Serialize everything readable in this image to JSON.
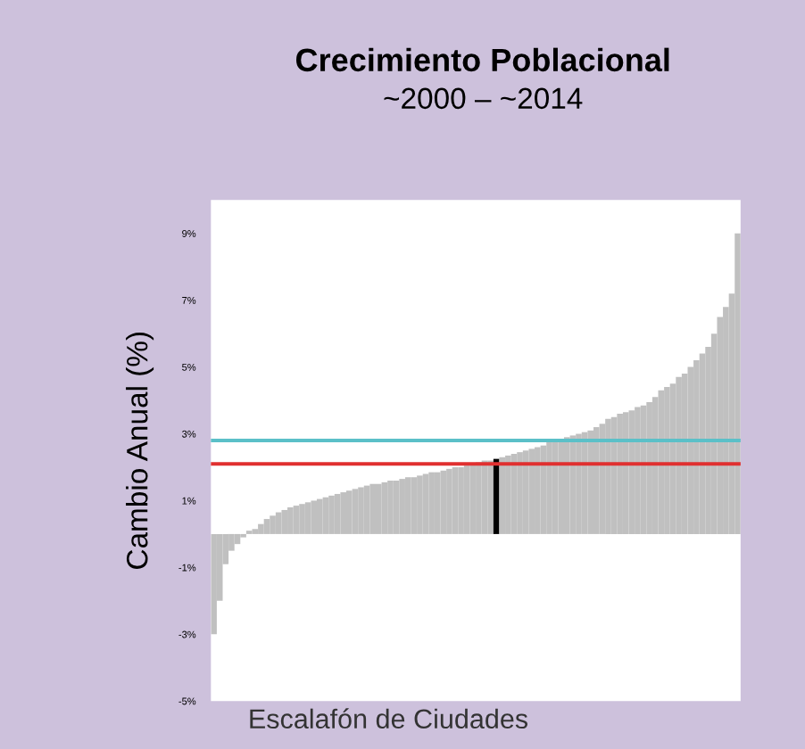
{
  "chart_data": {
    "type": "bar",
    "title": "Crecimiento Poblacional",
    "subtitle": "~2000 – ~2014",
    "xlabel": "Escalafón de Ciudades",
    "ylabel": "Cambio Anual (%)",
    "categories": [
      null,
      null,
      null,
      null,
      null,
      null,
      null,
      null,
      null,
      null,
      null,
      null,
      null,
      null,
      null,
      null,
      null,
      null,
      null,
      null,
      null,
      null,
      null,
      null,
      null,
      null,
      null,
      null,
      null,
      null,
      null,
      null,
      null,
      null,
      null,
      null,
      null,
      null,
      null,
      null,
      null,
      null,
      null,
      null,
      null,
      null,
      null,
      null,
      null,
      null,
      null,
      null,
      null,
      null,
      null,
      null,
      null,
      null,
      null,
      null,
      null,
      null,
      null,
      null,
      null,
      null,
      null,
      null,
      null,
      null,
      null,
      null,
      null,
      null,
      null,
      null,
      null,
      null,
      null,
      null,
      null,
      null,
      null,
      null,
      null,
      null,
      null,
      null,
      null,
      null
    ],
    "values": [
      -3.0,
      -2.0,
      -0.9,
      -0.5,
      -0.3,
      -0.1,
      0.1,
      0.15,
      0.3,
      0.45,
      0.55,
      0.65,
      0.72,
      0.8,
      0.85,
      0.9,
      0.95,
      1.0,
      1.05,
      1.1,
      1.15,
      1.2,
      1.25,
      1.3,
      1.35,
      1.4,
      1.45,
      1.5,
      1.5,
      1.55,
      1.6,
      1.6,
      1.65,
      1.7,
      1.7,
      1.75,
      1.8,
      1.85,
      1.85,
      1.9,
      1.95,
      2.0,
      2.0,
      2.05,
      2.1,
      2.15,
      2.2,
      2.2,
      2.25,
      2.3,
      2.35,
      2.4,
      2.45,
      2.5,
      2.55,
      2.6,
      2.65,
      2.75,
      2.8,
      2.85,
      2.9,
      2.95,
      3.0,
      3.05,
      3.1,
      3.2,
      3.3,
      3.45,
      3.5,
      3.6,
      3.65,
      3.7,
      3.8,
      3.85,
      3.95,
      4.1,
      4.3,
      4.4,
      4.5,
      4.7,
      4.8,
      5.0,
      5.2,
      5.4,
      5.6,
      6.0,
      6.5,
      6.8,
      7.2,
      9.0
    ],
    "colors": [
      "#c0c0c0",
      "#c0c0c0",
      "#c0c0c0",
      "#c0c0c0",
      "#c0c0c0",
      "#c0c0c0",
      "#c0c0c0",
      "#c0c0c0",
      "#c0c0c0",
      "#c0c0c0",
      "#c0c0c0",
      "#c0c0c0",
      "#c0c0c0",
      "#c0c0c0",
      "#c0c0c0",
      "#c0c0c0",
      "#c0c0c0",
      "#c0c0c0",
      "#c0c0c0",
      "#c0c0c0",
      "#c0c0c0",
      "#c0c0c0",
      "#c0c0c0",
      "#c0c0c0",
      "#c0c0c0",
      "#c0c0c0",
      "#c0c0c0",
      "#c0c0c0",
      "#c0c0c0",
      "#c0c0c0",
      "#c0c0c0",
      "#c0c0c0",
      "#c0c0c0",
      "#c0c0c0",
      "#c0c0c0",
      "#c0c0c0",
      "#c0c0c0",
      "#c0c0c0",
      "#c0c0c0",
      "#c0c0c0",
      "#c0c0c0",
      "#c0c0c0",
      "#c0c0c0",
      "#c0c0c0",
      "#c0c0c0",
      "#c0c0c0",
      "#c0c0c0",
      "#c0c0c0",
      "#000000",
      "#c0c0c0",
      "#c0c0c0",
      "#c0c0c0",
      "#c0c0c0",
      "#c0c0c0",
      "#c0c0c0",
      "#c0c0c0",
      "#c0c0c0",
      "#c0c0c0",
      "#c0c0c0",
      "#c0c0c0",
      "#c0c0c0",
      "#c0c0c0",
      "#c0c0c0",
      "#c0c0c0",
      "#c0c0c0",
      "#c0c0c0",
      "#c0c0c0",
      "#c0c0c0",
      "#c0c0c0",
      "#c0c0c0",
      "#c0c0c0",
      "#c0c0c0",
      "#c0c0c0",
      "#c0c0c0",
      "#c0c0c0",
      "#c0c0c0",
      "#c0c0c0",
      "#c0c0c0",
      "#c0c0c0",
      "#c0c0c0",
      "#c0c0c0",
      "#c0c0c0",
      "#c0c0c0",
      "#c0c0c0",
      "#c0c0c0",
      "#c0c0c0",
      "#c0c0c0",
      "#c0c0c0",
      "#c0c0c0",
      "#c0c0c0"
    ],
    "ylim": [
      -5,
      10
    ],
    "yticks": [
      {
        "value": -5,
        "label": "-5%"
      },
      {
        "value": -3,
        "label": "-3%"
      },
      {
        "value": -1,
        "label": "-1%"
      },
      {
        "value": 1,
        "label": "1%"
      },
      {
        "value": 3,
        "label": "3%"
      },
      {
        "value": 5,
        "label": "5%"
      },
      {
        "value": 7,
        "label": "7%"
      },
      {
        "value": 9,
        "label": "9%"
      }
    ],
    "ref_lines": [
      {
        "axis": "y",
        "value": 2.8,
        "color": "#5bc0c8"
      },
      {
        "axis": "y",
        "value": 2.1,
        "color": "#e03030"
      }
    ],
    "tick_labels": "y",
    "grid": false,
    "legend": false
  }
}
